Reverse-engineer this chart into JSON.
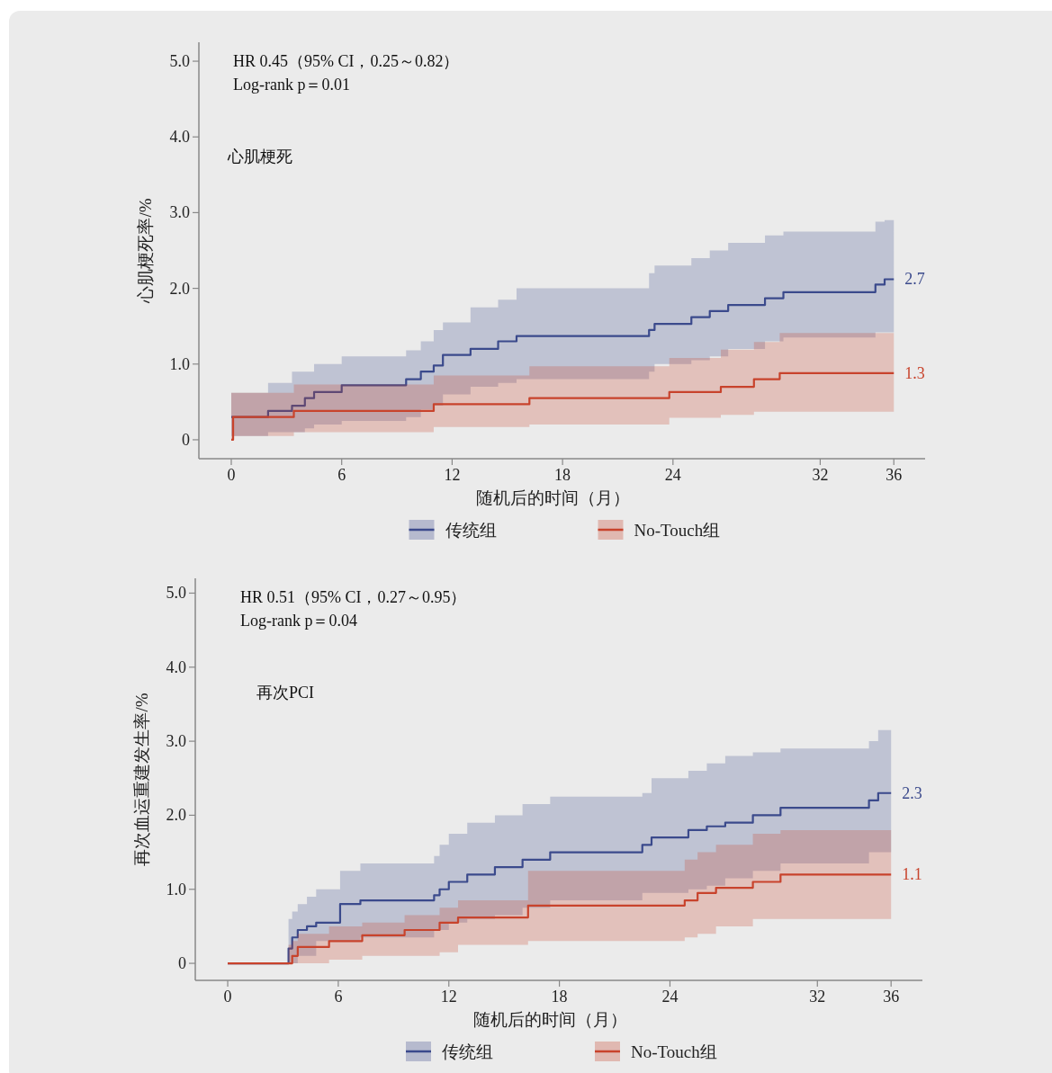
{
  "chart_data": [
    {
      "type": "step",
      "ylabel": "心肌梗死率/%",
      "xlabel": "随机后的时间（月）",
      "legend": "bottom",
      "xlim": [
        -1.76,
        37.7
      ],
      "ylim": [
        -0.25,
        5.25
      ],
      "xticks": [
        0,
        6,
        12,
        18,
        24,
        32,
        36
      ],
      "yticks": [
        0,
        {
          "value": 1,
          "label": "1.0"
        },
        {
          "value": 2,
          "label": "2.0"
        },
        {
          "value": 3,
          "label": "3.0"
        },
        {
          "value": 4,
          "label": "4.0"
        },
        {
          "value": 5,
          "label": "5.0"
        }
      ],
      "annotations": [
        "HR 0.45（95% CI，0.25～0.82）",
        "Log-rank p＝0.01",
        "心肌梗死",
        "2.7",
        "1.3"
      ],
      "series": [
        {
          "name": "传统组",
          "color": "#3b4a8c",
          "x": [
            0,
            2,
            3.3,
            4,
            4.5,
            6,
            9.5,
            10.3,
            11,
            11.5,
            13,
            14.5,
            15.5,
            22.7,
            23,
            25,
            26,
            27,
            29,
            30,
            35,
            35.5,
            36
          ],
          "values": [
            0.3,
            0.38,
            0.45,
            0.55,
            0.63,
            0.72,
            0.8,
            0.9,
            0.98,
            1.12,
            1.2,
            1.3,
            1.37,
            1.45,
            1.53,
            1.62,
            1.7,
            1.78,
            1.87,
            1.95,
            2.05,
            2.12,
            2.12
          ],
          "upper": [
            0.62,
            0.75,
            0.9,
            0.9,
            1.0,
            1.1,
            1.18,
            1.3,
            1.45,
            1.55,
            1.75,
            1.85,
            2.0,
            2.2,
            2.3,
            2.4,
            2.5,
            2.6,
            2.7,
            2.75,
            2.88,
            2.9,
            2.9
          ],
          "lower": [
            0.0,
            0.05,
            0.1,
            0.1,
            0.15,
            0.2,
            0.25,
            0.3,
            0.4,
            0.45,
            0.6,
            0.7,
            0.75,
            0.8,
            0.9,
            1.0,
            1.05,
            1.1,
            1.2,
            1.3,
            1.35,
            1.42,
            1.42
          ]
        },
        {
          "name": "No-Touch组",
          "color": "#c8432c",
          "x": [
            0,
            0.1,
            3.4,
            11.0,
            16.2,
            23.8,
            26.6,
            28.4,
            29.8,
            36
          ],
          "values": [
            0,
            0.3,
            0.38,
            0.47,
            0.55,
            0.63,
            0.7,
            0.8,
            0.88,
            0.88
          ],
          "upper": [
            0.62,
            0.62,
            0.73,
            0.85,
            0.97,
            1.08,
            1.19,
            1.29,
            1.41,
            1.41
          ],
          "lower": [
            0,
            0,
            0.05,
            0.1,
            0.17,
            0.2,
            0.29,
            0.33,
            0.37,
            0.37
          ]
        }
      ]
    },
    {
      "type": "step",
      "ylabel": "再次血运重建发生率/%",
      "xlabel": "随机后的时间（月）",
      "legend": "bottom",
      "xlim": [
        -1.76,
        37.7
      ],
      "ylim": [
        -0.23,
        5.2
      ],
      "xticks": [
        0,
        6,
        12,
        18,
        24,
        32,
        36
      ],
      "yticks": [
        0,
        {
          "value": 1,
          "label": "1.0"
        },
        {
          "value": 2,
          "label": "2.0"
        },
        {
          "value": 3,
          "label": "3.0"
        },
        {
          "value": 4,
          "label": "4.0"
        },
        {
          "value": 5,
          "label": "5.0"
        }
      ],
      "annotations": [
        "HR 0.51（95% CI，0.27～0.95）",
        "Log-rank p＝0.04",
        "再次PCI",
        "2.3",
        "1.1"
      ],
      "series": [
        {
          "name": "传统组",
          "color": "#3b4a8c",
          "x": [
            0,
            3.3,
            3.5,
            3.8,
            4.3,
            4.8,
            6.1,
            7.2,
            11.2,
            11.5,
            12,
            13,
            14.5,
            16,
            17.5,
            22.5,
            23,
            25,
            26,
            27,
            28.5,
            30,
            34.8,
            35.3,
            36
          ],
          "values": [
            0,
            0.2,
            0.35,
            0.45,
            0.5,
            0.55,
            0.8,
            0.85,
            0.92,
            1.0,
            1.1,
            1.2,
            1.3,
            1.4,
            1.5,
            1.6,
            1.7,
            1.8,
            1.85,
            1.9,
            2.0,
            2.1,
            2.2,
            2.3,
            2.3
          ],
          "upper": [
            0,
            0.6,
            0.7,
            0.8,
            0.9,
            1.0,
            1.25,
            1.35,
            1.45,
            1.6,
            1.75,
            1.9,
            2.0,
            2.15,
            2.25,
            2.3,
            2.5,
            2.6,
            2.7,
            2.8,
            2.85,
            2.9,
            3.0,
            3.15,
            3.15
          ],
          "lower": [
            0,
            0,
            0,
            0,
            0.1,
            0.1,
            0.3,
            0.3,
            0.35,
            0.45,
            0.45,
            0.55,
            0.6,
            0.65,
            0.75,
            0.85,
            0.95,
            0.95,
            1.0,
            1.05,
            1.15,
            1.25,
            1.35,
            1.5,
            1.5
          ]
        },
        {
          "name": "No-Touch组",
          "color": "#c8432c",
          "x": [
            0,
            3.3,
            3.5,
            3.8,
            5.5,
            7.3,
            9.6,
            11.5,
            12.5,
            16.3,
            24.8,
            25.5,
            26.5,
            28.5,
            30,
            36
          ],
          "values": [
            0,
            0,
            0.1,
            0.22,
            0.3,
            0.38,
            0.45,
            0.55,
            0.62,
            0.78,
            0.85,
            0.95,
            1.02,
            1.1,
            1.2,
            1.2
          ],
          "upper": [
            0,
            0.25,
            0.3,
            0.4,
            0.5,
            0.55,
            0.65,
            0.75,
            0.85,
            1.25,
            1.4,
            1.5,
            1.6,
            1.75,
            1.8,
            1.8
          ],
          "lower": [
            0,
            0,
            0,
            0,
            0,
            0.05,
            0.1,
            0.1,
            0.15,
            0.25,
            0.3,
            0.35,
            0.4,
            0.5,
            0.6,
            0.6
          ]
        }
      ]
    }
  ]
}
